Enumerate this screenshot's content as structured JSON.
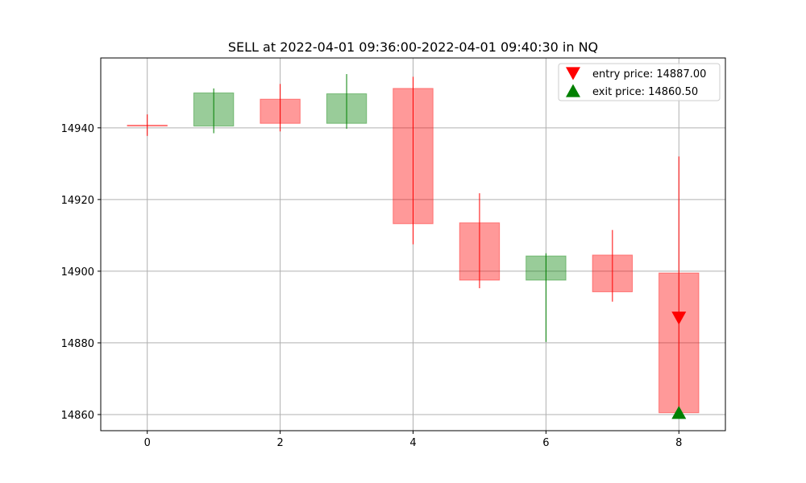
{
  "chart_data": {
    "type": "candlestick",
    "title": "SELL at 2022-04-01 09:36:00-2022-04-01 09:40:30 in NQ",
    "xlabel": "",
    "ylabel": "",
    "xlim": [
      -0.7,
      8.7
    ],
    "ylim": [
      14855.5,
      14959.5
    ],
    "x_ticks": [
      0,
      2,
      4,
      6,
      8
    ],
    "y_ticks": [
      14860,
      14880,
      14900,
      14920,
      14940
    ],
    "grid": true,
    "legend_position": "top-right",
    "colors": {
      "up": "#008000",
      "down": "#ff0000",
      "grid": "#b0b0b0"
    },
    "candles": [
      {
        "x": 0,
        "open": 14940.75,
        "high": 14943.75,
        "low": 14937.75,
        "close": 14940.5
      },
      {
        "x": 1,
        "open": 14940.5,
        "high": 14951.0,
        "low": 14938.5,
        "close": 14949.75
      },
      {
        "x": 2,
        "open": 14948.0,
        "high": 14952.25,
        "low": 14939.0,
        "close": 14941.25
      },
      {
        "x": 3,
        "open": 14941.25,
        "high": 14955.0,
        "low": 14939.75,
        "close": 14949.5
      },
      {
        "x": 4,
        "open": 14951.0,
        "high": 14954.25,
        "low": 14907.5,
        "close": 14913.25
      },
      {
        "x": 5,
        "open": 14913.5,
        "high": 14921.75,
        "low": 14895.25,
        "close": 14897.5
      },
      {
        "x": 6,
        "open": 14897.5,
        "high": 14905.0,
        "low": 14880.25,
        "close": 14904.25
      },
      {
        "x": 7,
        "open": 14904.5,
        "high": 14911.5,
        "low": 14891.5,
        "close": 14894.25
      },
      {
        "x": 8,
        "open": 14899.5,
        "high": 14932.0,
        "low": 14860.5,
        "close": 14860.5
      }
    ],
    "markers": [
      {
        "name": "entry price: 14887.00",
        "x": 8,
        "y": 14887.0,
        "shape": "triangle-down",
        "color": "#ff0000"
      },
      {
        "name": "exit price: 14860.50",
        "x": 8,
        "y": 14860.5,
        "shape": "triangle-up",
        "color": "#008000"
      }
    ]
  }
}
